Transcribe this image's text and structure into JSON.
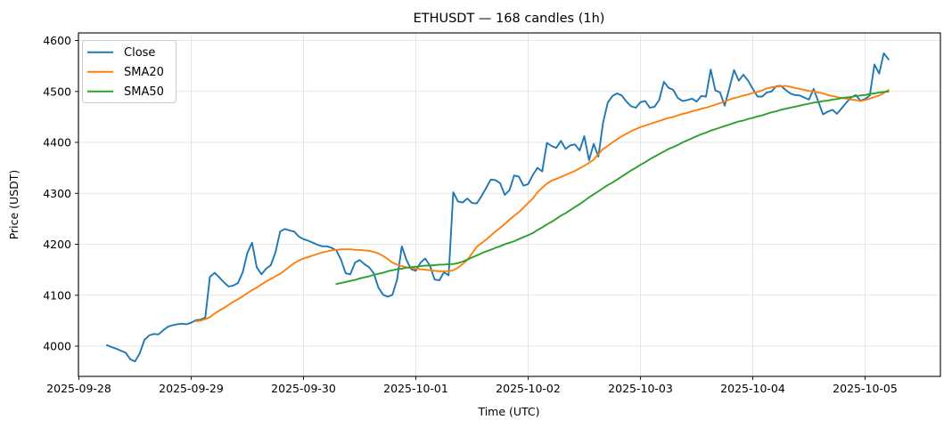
{
  "title": "ETHUSDT — 168 candles (1h)",
  "chart_data": {
    "type": "line",
    "title": "ETHUSDT — 168 candles (1h)",
    "xlabel": "Time (UTC)",
    "ylabel": "Price (USDT)",
    "symbol": "ETHUSDT",
    "interval": "1h",
    "n_candles": 168,
    "grid": true,
    "legend_position": "upper left",
    "y_ticks": [
      4000,
      4100,
      4200,
      4300,
      4400,
      4500,
      4600
    ],
    "ylim": [
      3941,
      4615
    ],
    "x_tick_labels": [
      "2025-09-28",
      "2025-09-29",
      "2025-09-30",
      "2025-10-01",
      "2025-10-02",
      "2025-10-03",
      "2025-10-04",
      "2025-10-05"
    ],
    "x_tick_candle_index": [
      -6,
      18,
      42,
      66,
      90,
      114,
      138,
      162
    ],
    "series": [
      {
        "name": "Close",
        "color": "#1f77b4",
        "start_index": 0,
        "values": [
          4002,
          3998,
          3995,
          3991,
          3987,
          3974,
          3970,
          3986,
          4012,
          4021,
          4024,
          4023,
          4031,
          4038,
          4041,
          4043,
          4044,
          4043,
          4046,
          4051,
          4052,
          4056,
          4136,
          4144,
          4135,
          4125,
          4117,
          4119,
          4124,
          4145,
          4183,
          4203,
          4155,
          4141,
          4152,
          4159,
          4184,
          4225,
          4230,
          4227,
          4225,
          4215,
          4210,
          4207,
          4203,
          4199,
          4196,
          4196,
          4193,
          4188,
          4170,
          4143,
          4141,
          4164,
          4169,
          4161,
          4155,
          4143,
          4115,
          4101,
          4097,
          4101,
          4131,
          4196,
          4169,
          4151,
          4148,
          4164,
          4172,
          4158,
          4131,
          4129,
          4145,
          4139,
          4302,
          4284,
          4282,
          4290,
          4281,
          4280,
          4294,
          4310,
          4327,
          4326,
          4320,
          4297,
          4306,
          4335,
          4333,
          4315,
          4318,
          4336,
          4350,
          4343,
          4399,
          4393,
          4389,
          4403,
          4387,
          4394,
          4396,
          4384,
          4412,
          4365,
          4397,
          4372,
          4438,
          4478,
          4491,
          4496,
          4492,
          4480,
          4471,
          4468,
          4479,
          4481,
          4468,
          4470,
          4483,
          4519,
          4507,
          4503,
          4487,
          4481,
          4483,
          4486,
          4480,
          4491,
          4490,
          4543,
          4502,
          4498,
          4472,
          4507,
          4542,
          4521,
          4533,
          4521,
          4505,
          4490,
          4490,
          4498,
          4500,
          4510,
          4511,
          4503,
          4496,
          4493,
          4492,
          4488,
          4484,
          4505,
          4480,
          4455,
          4460,
          4464,
          4456,
          4467,
          4478,
          4488,
          4493,
          4482,
          4485,
          4492,
          4553,
          4535,
          4575,
          4563
        ]
      },
      {
        "name": "SMA20",
        "color": "#ff7f0e",
        "start_index": 19,
        "values": [
          4049,
          4050,
          4053,
          4057,
          4064,
          4070,
          4075,
          4081,
          4087,
          4092,
          4098,
          4104,
          4110,
          4115,
          4121,
          4127,
          4132,
          4137,
          4142,
          4149,
          4156,
          4163,
          4168,
          4172,
          4175,
          4178,
          4181,
          4184,
          4186,
          4188,
          4189,
          4190,
          4190,
          4190,
          4189,
          4189,
          4188,
          4187,
          4185,
          4182,
          4177,
          4171,
          4164,
          4160,
          4157,
          4155,
          4153,
          4152,
          4151,
          4150,
          4149,
          4148,
          4147,
          4147,
          4147,
          4149,
          4154,
          4161,
          4169,
          4182,
          4195,
          4202,
          4209,
          4217,
          4225,
          4232,
          4240,
          4248,
          4256,
          4263,
          4272,
          4281,
          4290,
          4302,
          4311,
          4319,
          4325,
          4328,
          4332,
          4336,
          4340,
          4344,
          4349,
          4354,
          4360,
          4366,
          4377,
          4387,
          4393,
          4400,
          4406,
          4412,
          4417,
          4422,
          4426,
          4430,
          4433,
          4436,
          4439,
          4442,
          4445,
          4448,
          4450,
          4453,
          4456,
          4458,
          4461,
          4463,
          4466,
          4468,
          4471,
          4474,
          4477,
          4480,
          4484,
          4487,
          4489,
          4492,
          4494,
          4497,
          4499,
          4502,
          4506,
          4508,
          4509,
          4510,
          4511,
          4509,
          4507,
          4505,
          4503,
          4501,
          4500,
          4498,
          4496,
          4493,
          4491,
          4489,
          4487,
          4486,
          4484,
          4483,
          4481,
          4483,
          4486,
          4489,
          4492,
          4497,
          4503
        ]
      },
      {
        "name": "SMA50",
        "color": "#2ca02c",
        "start_index": 49,
        "values": [
          4122,
          4124,
          4126,
          4128,
          4130,
          4133,
          4135,
          4137,
          4140,
          4142,
          4144,
          4147,
          4149,
          4151,
          4152,
          4154,
          4155,
          4156,
          4157,
          4158,
          4158,
          4159,
          4160,
          4160,
          4161,
          4161,
          4163,
          4166,
          4170,
          4174,
          4178,
          4182,
          4186,
          4189,
          4193,
          4196,
          4200,
          4203,
          4206,
          4210,
          4214,
          4218,
          4222,
          4228,
          4233,
          4239,
          4244,
          4250,
          4256,
          4261,
          4267,
          4273,
          4279,
          4285,
          4292,
          4298,
          4304,
          4310,
          4316,
          4321,
          4327,
          4333,
          4339,
          4345,
          4350,
          4356,
          4361,
          4367,
          4372,
          4377,
          4382,
          4387,
          4391,
          4395,
          4400,
          4404,
          4408,
          4412,
          4416,
          4419,
          4423,
          4426,
          4429,
          4432,
          4435,
          4438,
          4441,
          4443,
          4446,
          4448,
          4451,
          4453,
          4456,
          4459,
          4461,
          4464,
          4466,
          4468,
          4470,
          4472,
          4474,
          4476,
          4478,
          4479,
          4481,
          4482,
          4484,
          4485,
          4487,
          4488,
          4489,
          4491,
          4492,
          4493,
          4495,
          4496,
          4498,
          4499,
          4500
        ]
      }
    ]
  }
}
